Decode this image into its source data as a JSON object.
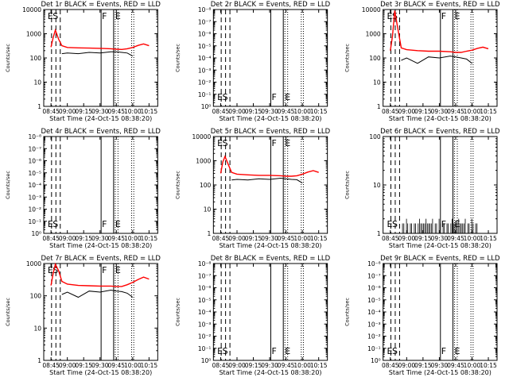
{
  "figure": {
    "start_time_label": "Start Time (24-Oct-15 08:38:20)",
    "ylabel": "Counts/sec",
    "x_ticks": [
      "08:45",
      "09:00",
      "09:15",
      "09:30",
      "09:45",
      "10:00",
      "10:15"
    ],
    "colors": {
      "events": "#000000",
      "lld": "#ff0000"
    }
  },
  "chart_data": [
    {
      "id": "det1r",
      "type": "line",
      "title": "Det 1r BLACK = Events, RED = LLD",
      "scale": "log",
      "ylim": [
        1,
        10000
      ],
      "yticks": [
        "1",
        "10",
        "100",
        "1000",
        "10000"
      ],
      "markers": {
        "E1": "E",
        "S": "S",
        "F": "F",
        "E2": "E"
      },
      "x": [
        "08:45:00",
        "08:47:00",
        "08:49:00",
        "08:52:00",
        "08:55:00",
        "09:00:00",
        "09:10:00",
        "09:20:00",
        "09:30:00",
        "09:40:00",
        "09:45:00",
        "09:50:00",
        "09:55:00",
        "10:00:00",
        "10:05:00",
        "10:10:00",
        "10:15:00"
      ],
      "series": [
        {
          "name": "LLD",
          "values": [
            280,
            700,
            1400,
            600,
            320,
            270,
            260,
            255,
            250,
            240,
            230,
            225,
            240,
            270,
            330,
            380,
            320
          ]
        },
        {
          "name": "Events",
          "values": [
            null,
            null,
            null,
            null,
            150,
            160,
            150,
            170,
            160,
            180,
            180,
            170,
            160,
            120,
            null,
            null,
            null
          ]
        }
      ]
    },
    {
      "id": "det2r",
      "type": "line",
      "title": "Det 2r BLACK = Events, RED = LLD",
      "scale": "log",
      "ylim": [
        1,
        1e-08
      ],
      "yticks": [
        "10⁰",
        "10⁻¹",
        "10⁻²",
        "10⁻³",
        "10⁻⁴",
        "10⁻⁵",
        "10⁻⁶",
        "10⁻⁷",
        "10⁻⁸"
      ],
      "markers": {
        "E1": "E",
        "S": "S",
        "F": "F",
        "E2": "E"
      },
      "series": []
    },
    {
      "id": "det3r",
      "type": "line",
      "title": "Det 3r BLACK = Events, RED = LLD",
      "scale": "log",
      "ylim": [
        1,
        10000
      ],
      "yticks": [
        "1",
        "10",
        "100",
        "1000",
        "10000"
      ],
      "markers": {
        "E1": "E",
        "S": "S",
        "F": "F",
        "E2": "E"
      },
      "x": [
        "08:45:00",
        "08:47:00",
        "08:49:00",
        "08:52:00",
        "08:55:00",
        "09:00:00",
        "09:10:00",
        "09:20:00",
        "09:30:00",
        "09:40:00",
        "09:45:00",
        "09:50:00",
        "09:55:00",
        "10:00:00",
        "10:05:00",
        "10:10:00",
        "10:15:00"
      ],
      "series": [
        {
          "name": "LLD",
          "values": [
            200,
            800,
            9000,
            1500,
            260,
            220,
            200,
            190,
            190,
            180,
            170,
            170,
            190,
            210,
            250,
            280,
            240
          ]
        },
        {
          "name": "Events",
          "values": [
            null,
            null,
            null,
            null,
            80,
            100,
            60,
            110,
            100,
            120,
            110,
            100,
            90,
            60,
            null,
            null,
            null
          ]
        }
      ]
    },
    {
      "id": "det4r",
      "type": "line",
      "title": "Det 4r BLACK = Events, RED = LLD",
      "scale": "log",
      "ylim": [
        1,
        1e-08
      ],
      "yticks": [
        "10⁰",
        "10⁻¹",
        "10⁻²",
        "10⁻³",
        "10⁻⁴",
        "10⁻⁵",
        "10⁻⁶",
        "10⁻⁷",
        "10⁻⁸"
      ],
      "markers": {
        "E1": "E",
        "S": "S",
        "F": "F",
        "E2": "E"
      },
      "series": []
    },
    {
      "id": "det5r",
      "type": "line",
      "title": "Det 5r BLACK = Events, RED = LLD",
      "scale": "log",
      "ylim": [
        1,
        10000
      ],
      "yticks": [
        "1",
        "10",
        "100",
        "1000",
        "10000"
      ],
      "markers": {
        "E1": "E",
        "S": "S",
        "F": "F",
        "E2": "E"
      },
      "x": [
        "08:45:00",
        "08:47:00",
        "08:49:00",
        "08:52:00",
        "08:55:00",
        "09:00:00",
        "09:10:00",
        "09:20:00",
        "09:30:00",
        "09:40:00",
        "09:45:00",
        "09:50:00",
        "09:55:00",
        "10:00:00",
        "10:05:00",
        "10:10:00",
        "10:15:00"
      ],
      "series": [
        {
          "name": "LLD",
          "values": [
            300,
            900,
            1500,
            700,
            330,
            280,
            260,
            250,
            250,
            240,
            230,
            230,
            240,
            280,
            340,
            390,
            330
          ]
        },
        {
          "name": "Events",
          "values": [
            null,
            null,
            null,
            null,
            160,
            170,
            160,
            180,
            170,
            190,
            180,
            170,
            165,
            120,
            null,
            null,
            null
          ]
        }
      ]
    },
    {
      "id": "det6r",
      "type": "line",
      "title": "Det 6r BLACK = Events, RED = LLD",
      "scale": "log",
      "ylim": [
        1,
        100
      ],
      "yticks": [
        "1",
        "10",
        "100"
      ],
      "markers": {
        "E1": "E",
        "S": "S",
        "F": "F",
        "E2": "E"
      },
      "series": [
        {
          "name": "Events",
          "pattern": "sparse spikes",
          "values": []
        }
      ]
    },
    {
      "id": "det7r",
      "type": "line",
      "title": "Det 7r BLACK = Events, RED = LLD",
      "scale": "log",
      "ylim": [
        1,
        1000
      ],
      "yticks": [
        "1",
        "10",
        "100",
        "1000"
      ],
      "markers": {
        "E1": "E",
        "S": "S",
        "F": "F",
        "E2": "E"
      },
      "x": [
        "08:45:00",
        "08:47:00",
        "08:49:00",
        "08:52:00",
        "08:55:00",
        "09:00:00",
        "09:10:00",
        "09:20:00",
        "09:30:00",
        "09:40:00",
        "09:45:00",
        "09:50:00",
        "09:55:00",
        "10:00:00",
        "10:05:00",
        "10:10:00",
        "10:15:00"
      ],
      "series": [
        {
          "name": "LLD",
          "values": [
            210,
            500,
            950,
            600,
            280,
            230,
            210,
            205,
            200,
            200,
            195,
            195,
            220,
            260,
            320,
            380,
            330
          ]
        },
        {
          "name": "Events",
          "values": [
            null,
            null,
            null,
            null,
            110,
            130,
            90,
            140,
            130,
            150,
            140,
            135,
            120,
            90,
            null,
            null,
            null
          ]
        }
      ]
    },
    {
      "id": "det8r",
      "type": "line",
      "title": "Det 8r BLACK = Events, RED = LLD",
      "scale": "log",
      "ylim": [
        1,
        1e-08
      ],
      "yticks": [
        "10⁰",
        "10⁻¹",
        "10⁻²",
        "10⁻³",
        "10⁻⁴",
        "10⁻⁵",
        "10⁻⁶",
        "10⁻⁷",
        "10⁻⁸"
      ],
      "markers": {
        "E1": "E",
        "S": "S",
        "F": "F",
        "E2": "E"
      },
      "series": []
    },
    {
      "id": "det9r",
      "type": "line",
      "title": "Det 9r BLACK = Events, RED = LLD",
      "scale": "log",
      "ylim": [
        1,
        1e-08
      ],
      "yticks": [
        "10⁰",
        "10⁻¹",
        "10⁻²",
        "10⁻³",
        "10⁻⁴",
        "10⁻⁵",
        "10⁻⁶",
        "10⁻⁷",
        "10⁻⁸"
      ],
      "markers": {
        "E1": "E",
        "S": "S",
        "F": "F",
        "E2": "E"
      },
      "series": []
    }
  ]
}
